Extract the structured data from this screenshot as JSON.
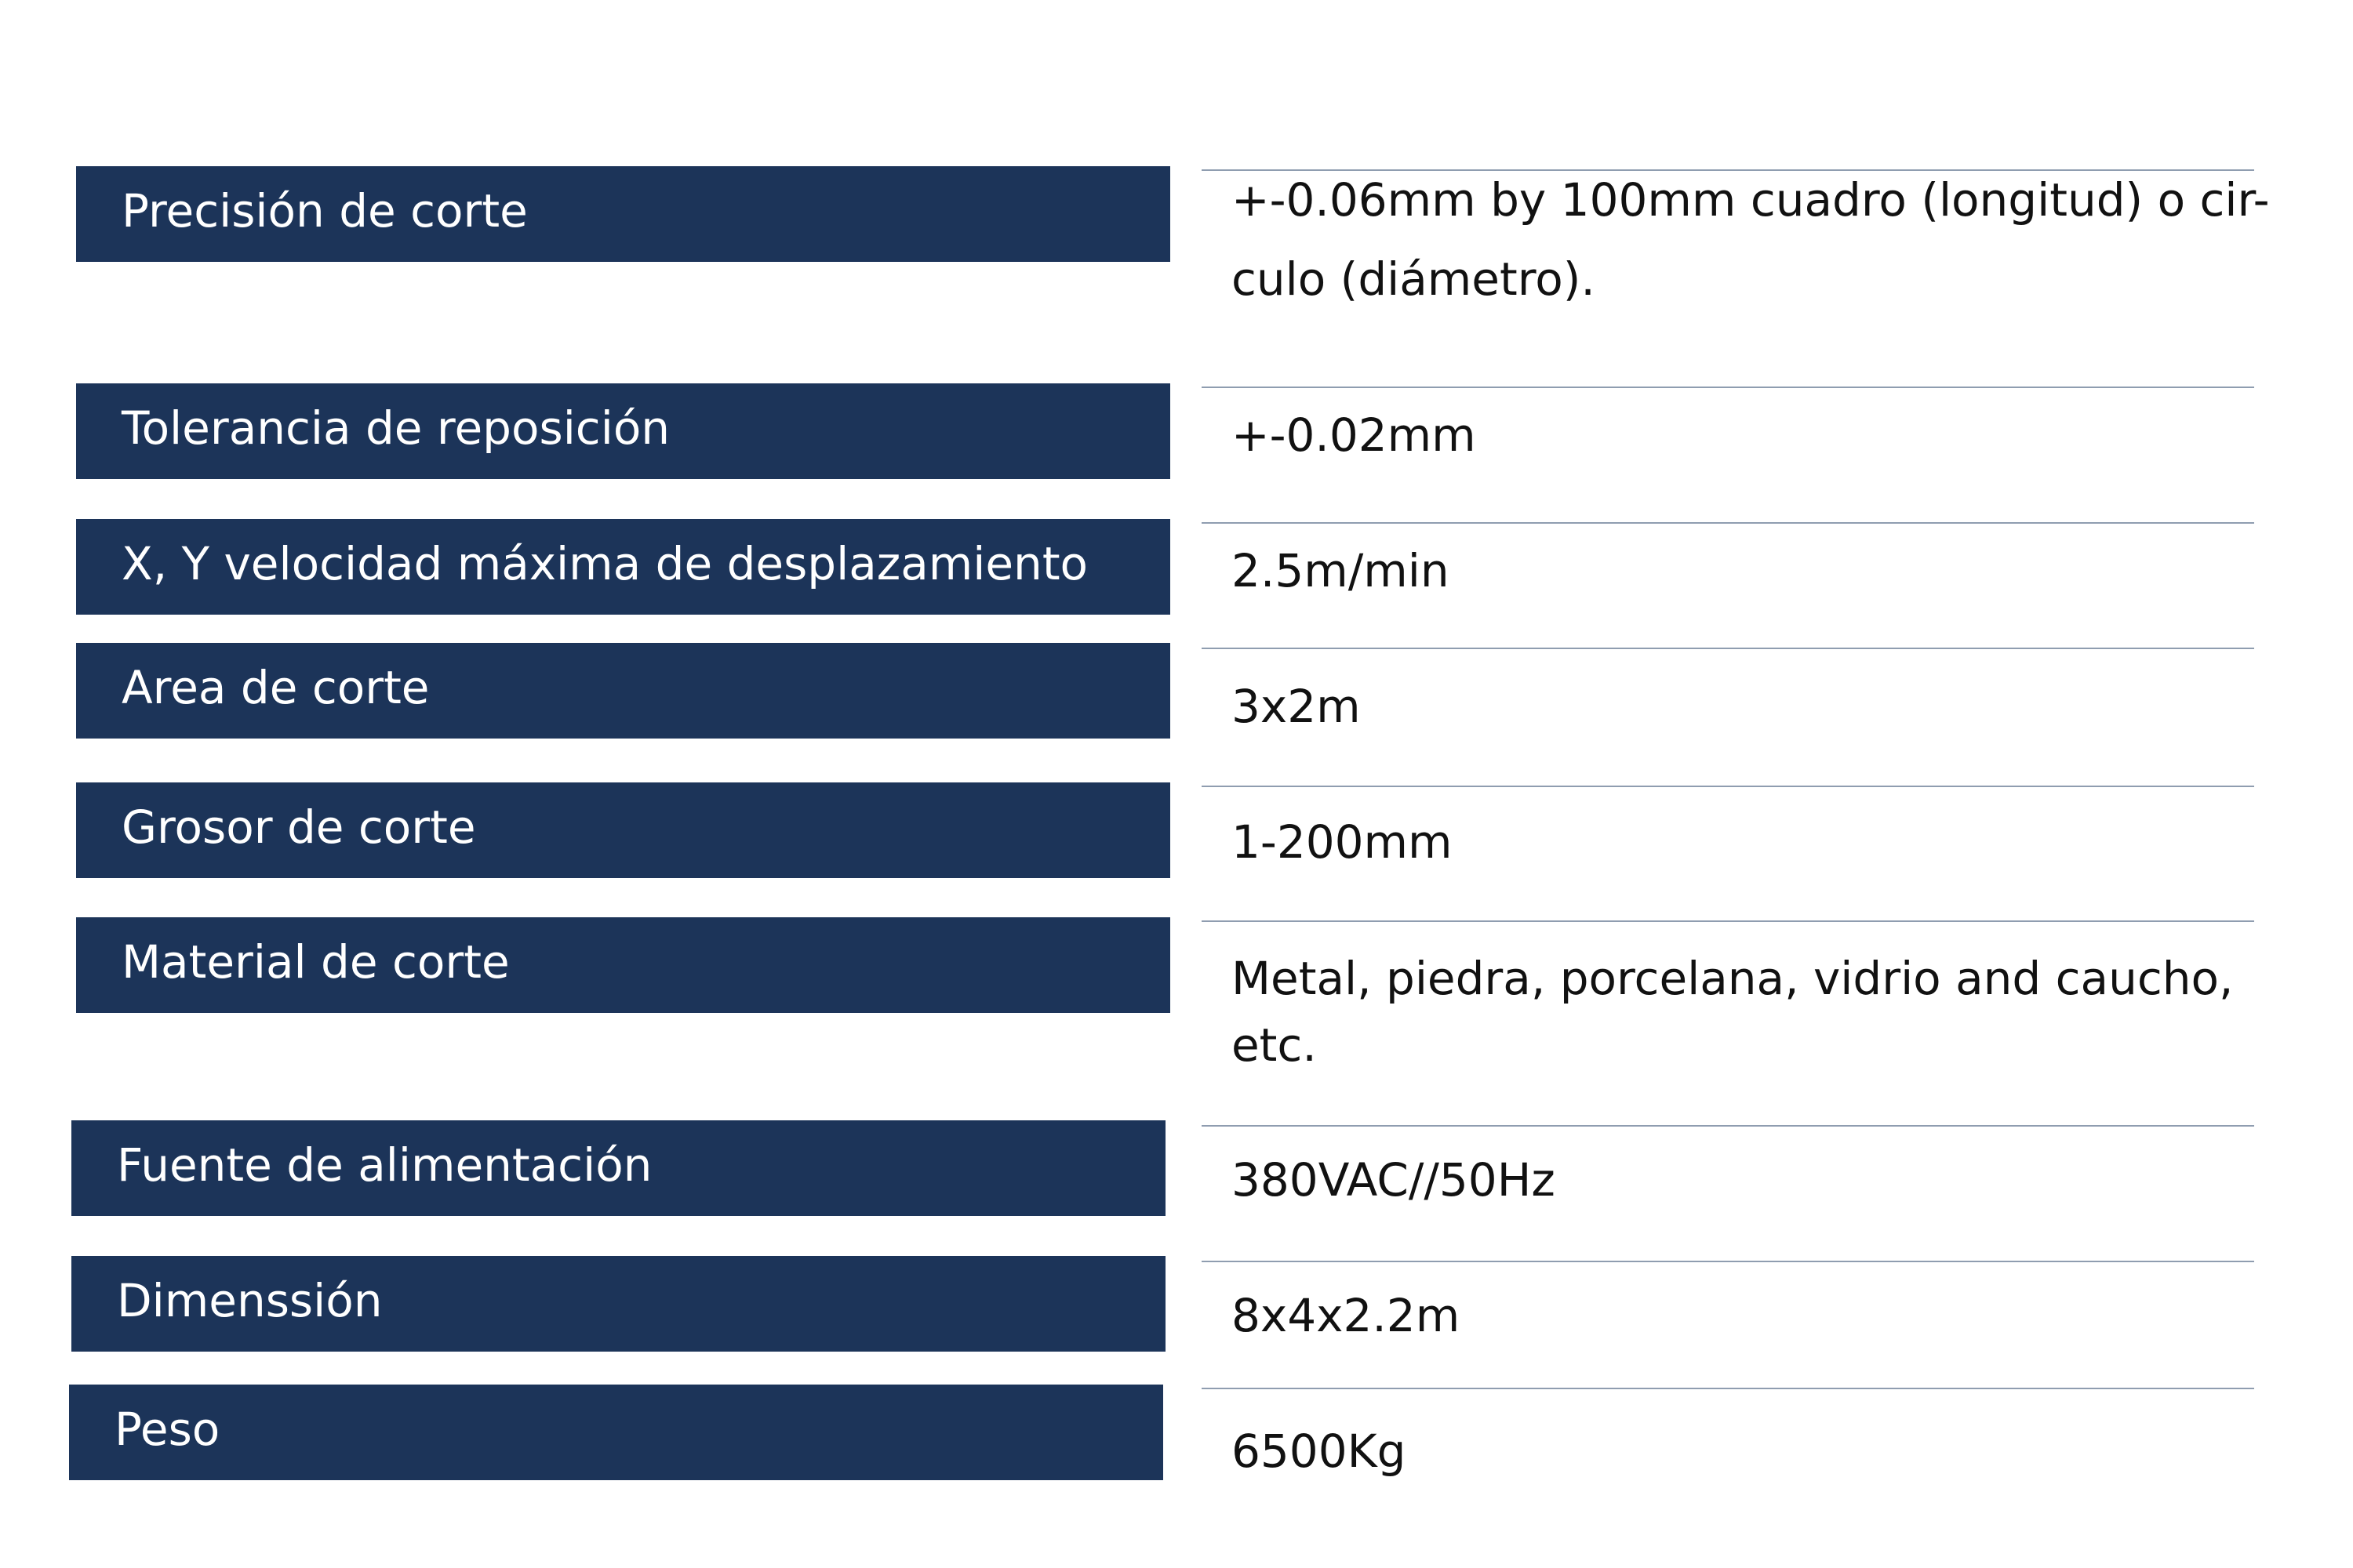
{
  "specs": [
    {
      "label": "Precisión de corte",
      "value_line_1": "+-0.06mm by 100mm cuadro (longitud) o cir-",
      "value_line_2": "culo (diámetro)."
    },
    {
      "label": "Tolerancia de reposición",
      "value_line_1": "+-0.02mm"
    },
    {
      "label": "X, Y velocidad máxima de desplazamiento",
      "value_line_1": "2.5m/min"
    },
    {
      "label": "Area de corte",
      "value_line_1": "3x2m"
    },
    {
      "label": "Grosor de corte",
      "value_line_1": "1-200mm"
    },
    {
      "label": "Material de corte",
      "value_line_1": "Metal, piedra, porcelana, vidrio and  caucho,",
      "value_line_2": "etc."
    },
    {
      "label": "Fuente de alimentación",
      "value_line_1": "380VAC//50Hz"
    },
    {
      "label": "Dimenssión",
      "value_line_1": "8x4x2.2m"
    },
    {
      "label": "Peso",
      "value_line_1": "6500Kg"
    }
  ]
}
